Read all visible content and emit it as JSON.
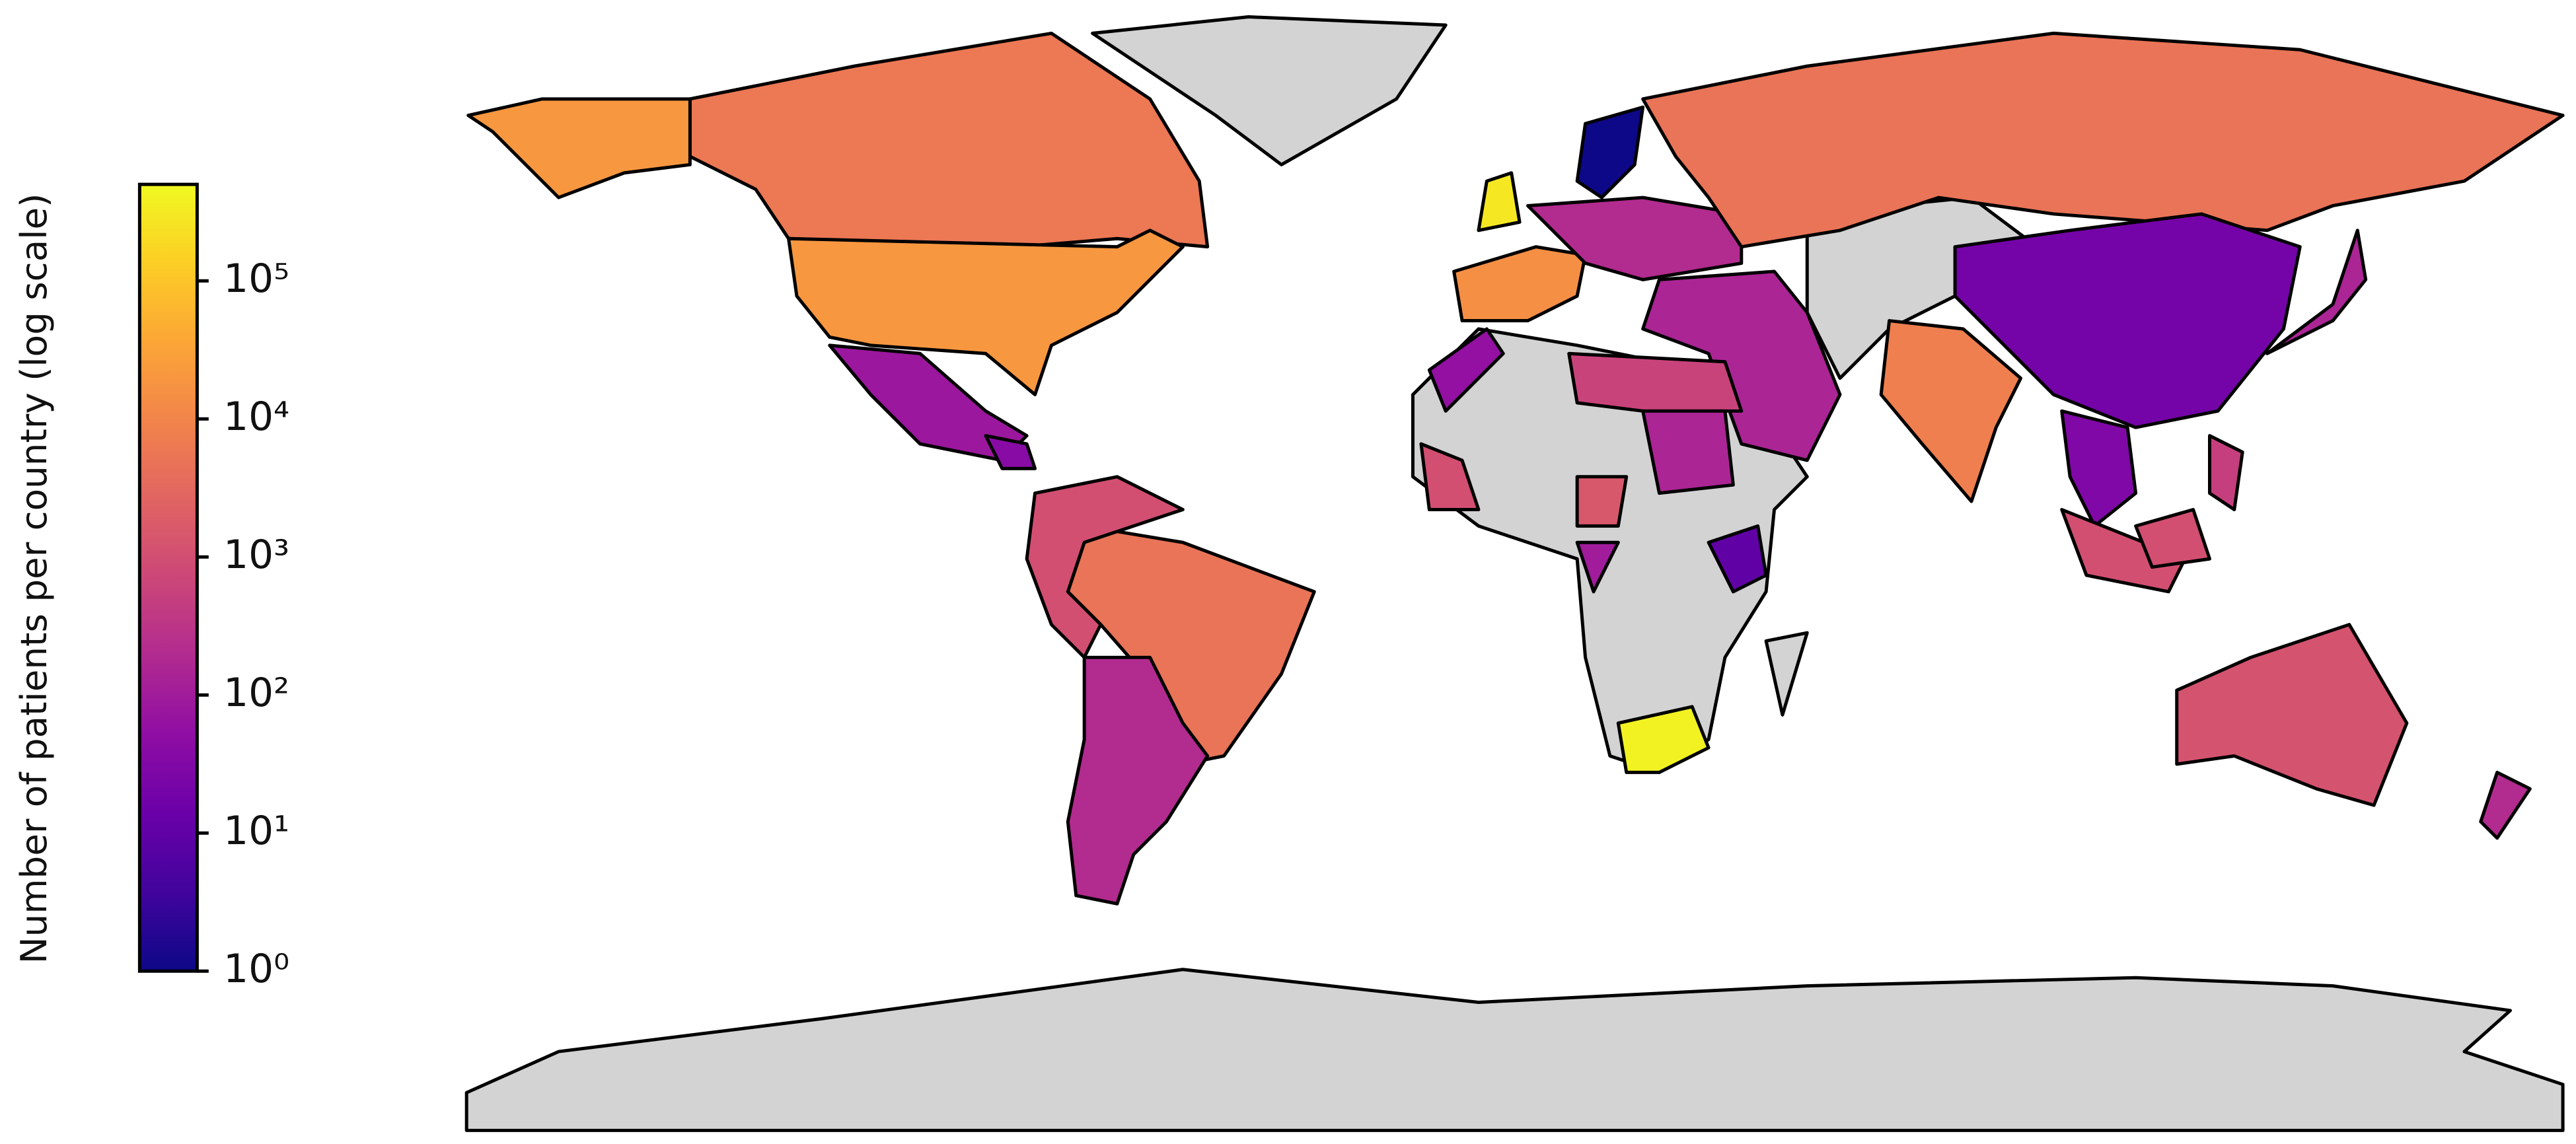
{
  "chart_data": {
    "type": "choropleth",
    "colorbar": {
      "label": "Number of patients per country (log scale)",
      "log_scale": true,
      "colormap": "plasma",
      "lim": [
        1,
        500000
      ],
      "ticks": [
        {
          "value": 1,
          "label": "10⁰"
        },
        {
          "value": 10,
          "label": "10¹"
        },
        {
          "value": 100,
          "label": "10²"
        },
        {
          "value": 1000,
          "label": "10³"
        },
        {
          "value": 10000,
          "label": "10⁴"
        },
        {
          "value": 100000,
          "label": "10⁵"
        }
      ]
    },
    "values": [
      6000,
      20000,
      80,
      40,
      5000,
      1000,
      200,
      300000,
      15000,
      1,
      200,
      5000,
      150,
      600,
      60,
      150,
      8000,
      20,
      150,
      30,
      1000,
      500,
      1200,
      200,
      400000,
      10,
      1500,
      1000,
      100
    ],
    "no_data_color": "#d3d3d3"
  }
}
